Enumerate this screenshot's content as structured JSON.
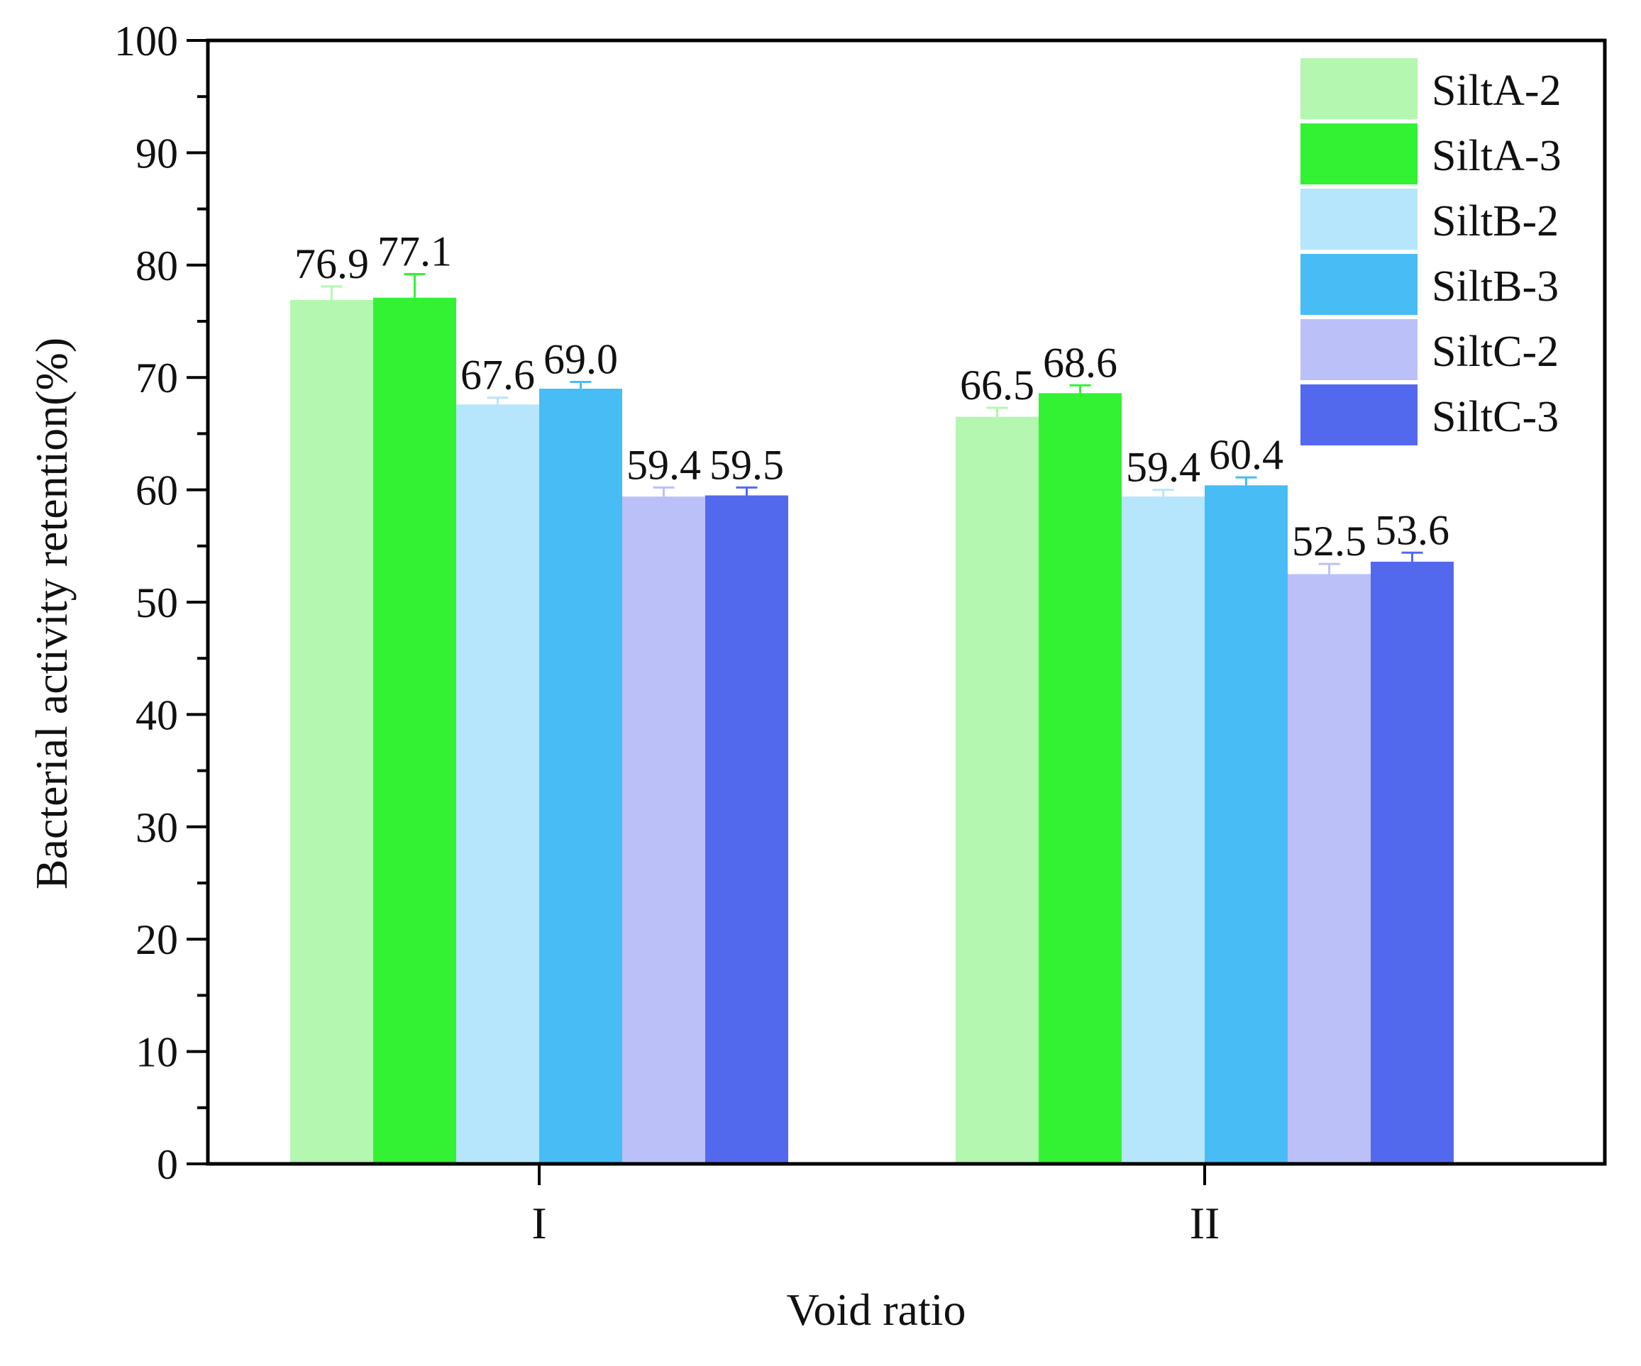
{
  "chart_data": {
    "type": "bar",
    "title": "",
    "xlabel": "Void ratio",
    "ylabel": "Bacterial activity retention(%)",
    "ylim": [
      0,
      100
    ],
    "y_ticks": [
      "0",
      "10",
      "20",
      "30",
      "40",
      "50",
      "60",
      "70",
      "80",
      "90",
      "100"
    ],
    "categories": [
      "I",
      "II"
    ],
    "legend_position": "top-right",
    "grid": false,
    "series": [
      {
        "name": "SiltA-2",
        "color": "#b3f7b0",
        "values": [
          76.9,
          66.5
        ],
        "errors": [
          1.2,
          0.8
        ],
        "labels": [
          "76.9",
          "66.5"
        ]
      },
      {
        "name": "SiltA-3",
        "color": "#33f233",
        "values": [
          77.1,
          68.6
        ],
        "errors": [
          2.1,
          0.7
        ],
        "labels": [
          "77.1",
          "68.6"
        ]
      },
      {
        "name": "SiltB-2",
        "color": "#b6e6fb",
        "values": [
          67.6,
          59.4
        ],
        "errors": [
          0.6,
          0.6
        ],
        "labels": [
          "67.6",
          "59.4"
        ]
      },
      {
        "name": "SiltB-3",
        "color": "#48bcf5",
        "values": [
          69.0,
          60.4
        ],
        "errors": [
          0.6,
          0.7
        ],
        "labels": [
          "69.0",
          "60.4"
        ]
      },
      {
        "name": "SiltC-2",
        "color": "#bbc1f8",
        "values": [
          59.4,
          52.5
        ],
        "errors": [
          0.8,
          0.9
        ],
        "labels": [
          "59.4",
          "52.5"
        ]
      },
      {
        "name": "SiltC-3",
        "color": "#5269ee",
        "values": [
          59.5,
          53.6
        ],
        "errors": [
          0.7,
          0.8
        ],
        "labels": [
          "59.5",
          "53.6"
        ]
      }
    ]
  }
}
